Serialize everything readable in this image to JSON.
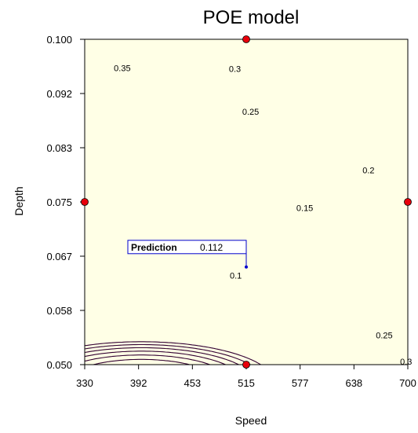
{
  "chart_data": {
    "type": "contour",
    "title": "POE model",
    "xlabel": "Speed",
    "ylabel": "Depth",
    "xlim": [
      330,
      700
    ],
    "ylim": [
      0.05,
      0.1
    ],
    "x_ticks": [
      "330",
      "392",
      "453",
      "515",
      "577",
      "638",
      "700"
    ],
    "y_ticks": [
      "0.050",
      "0.058",
      "0.067",
      "0.075",
      "0.083",
      "0.092",
      "0.100"
    ],
    "plot_background": "#FFFFE6",
    "contour_color": "#330033",
    "contour_levels": [
      0.1,
      0.15,
      0.2,
      0.25,
      0.3,
      0.35
    ],
    "contour_labels": [
      {
        "text": "0.35",
        "x": 373,
        "y": 0.0956
      },
      {
        "text": "0.3",
        "x": 502,
        "y": 0.0955
      },
      {
        "text": "0.25",
        "x": 520,
        "y": 0.0889
      },
      {
        "text": "0.2",
        "x": 655,
        "y": 0.0799
      },
      {
        "text": "0.15",
        "x": 582,
        "y": 0.0741
      },
      {
        "text": "0.1",
        "x": 503,
        "y": 0.0637
      },
      {
        "text": "0.25",
        "x": 673,
        "y": 0.0545
      },
      {
        "text": "0.3",
        "x": 698,
        "y": 0.0505
      }
    ],
    "design_points": [
      {
        "x": 515,
        "y": 0.1
      },
      {
        "x": 330,
        "y": 0.075
      },
      {
        "x": 700,
        "y": 0.075
      },
      {
        "x": 515,
        "y": 0.05
      }
    ],
    "prediction": {
      "label": "Prediction",
      "value": "0.112",
      "x": 515,
      "y": 0.065
    },
    "point_color": "#E8000B"
  }
}
